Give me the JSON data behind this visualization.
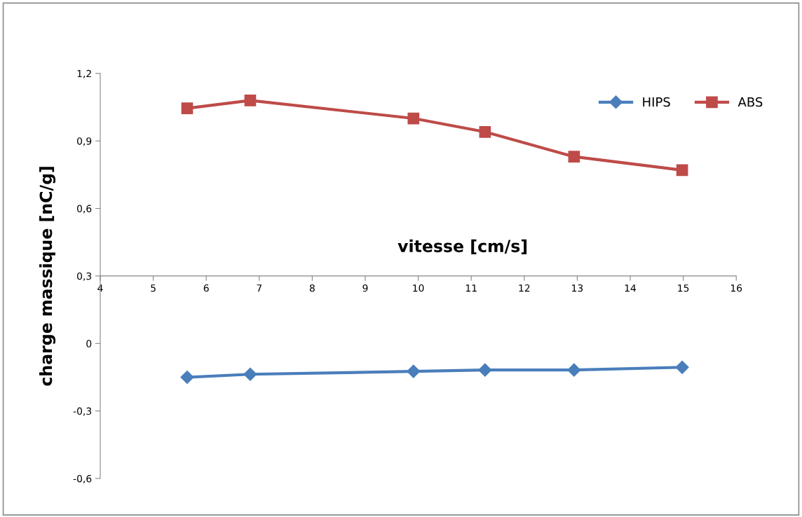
{
  "chart_data": {
    "type": "line",
    "xlabel": "vitesse [cm/s]",
    "ylabel": "charge massique [nC/g]",
    "xlim": [
      4,
      16
    ],
    "xticks": [
      4,
      5,
      6,
      7,
      8,
      9,
      10,
      11,
      12,
      13,
      14,
      15,
      16
    ],
    "ylim": [
      -0.6,
      1.2
    ],
    "yticks": [
      {
        "value": -0.6,
        "label": "-0,6"
      },
      {
        "value": -0.3,
        "label": "-0,3"
      },
      {
        "value": 0,
        "label": "0"
      },
      {
        "value": 0.3,
        "label": "0,3"
      },
      {
        "value": 0.6,
        "label": "0,6"
      },
      {
        "value": 0.9,
        "label": "0,9"
      },
      {
        "value": 1.2,
        "label": "1,2"
      }
    ],
    "x": [
      5.64,
      6.83,
      9.91,
      11.26,
      12.94,
      14.98
    ],
    "series": [
      {
        "name": "HIPS",
        "color": "#4a7ebb",
        "marker": "diamond",
        "values": [
          -0.15,
          -0.137,
          -0.124,
          -0.118,
          -0.118,
          -0.106
        ]
      },
      {
        "name": "ABS",
        "color": "#be4b48",
        "marker": "square",
        "values": [
          1.045,
          1.08,
          1.0,
          0.94,
          0.83,
          0.77
        ]
      }
    ],
    "grid": false,
    "legend": "top right"
  }
}
